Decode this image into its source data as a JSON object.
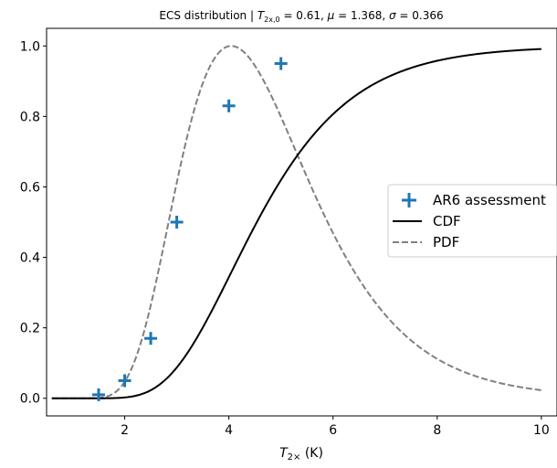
{
  "chart_data": {
    "type": "line",
    "title": {
      "prefix": "ECS distribution | ",
      "t_sym": "T",
      "t_sub": "2x,0",
      "t_val": " = 0.61, ",
      "mu_sym": "μ",
      "mu_val": " = 1.368, ",
      "sigma_sym": "σ",
      "sigma_val": " = 0.366"
    },
    "xlabel": {
      "sym": "T",
      "sub": "2×",
      "unit": " (K)"
    },
    "ylabel": "",
    "xlim": [
      0.5,
      10.3
    ],
    "ylim": [
      -0.05,
      1.05
    ],
    "xticks": [
      2,
      4,
      6,
      8,
      10
    ],
    "yticks": [
      0.0,
      0.2,
      0.4,
      0.6,
      0.8,
      1.0
    ],
    "ytick_labels": [
      "0.0",
      "0.2",
      "0.4",
      "0.6",
      "0.8",
      "1.0"
    ],
    "grid": false,
    "legend_position": "center-right",
    "lognormal_params": {
      "shift": 0.61,
      "mu": 1.368,
      "sigma": 0.366
    },
    "x_range": [
      0.6,
      10.0
    ],
    "series": [
      {
        "name": "AR6 assessment",
        "kind": "markers",
        "marker": "plus",
        "color": "#1f77b4",
        "x": [
          1.5,
          2.0,
          2.5,
          3.0,
          4.0,
          5.0
        ],
        "y": [
          0.01,
          0.05,
          0.17,
          0.5,
          0.83,
          0.95
        ]
      },
      {
        "name": "CDF",
        "kind": "line",
        "style": "solid",
        "color": "#000000"
      },
      {
        "name": "PDF",
        "kind": "line",
        "style": "dashed",
        "color": "#808080",
        "normalization": "scaled to peak = 1"
      }
    ]
  }
}
